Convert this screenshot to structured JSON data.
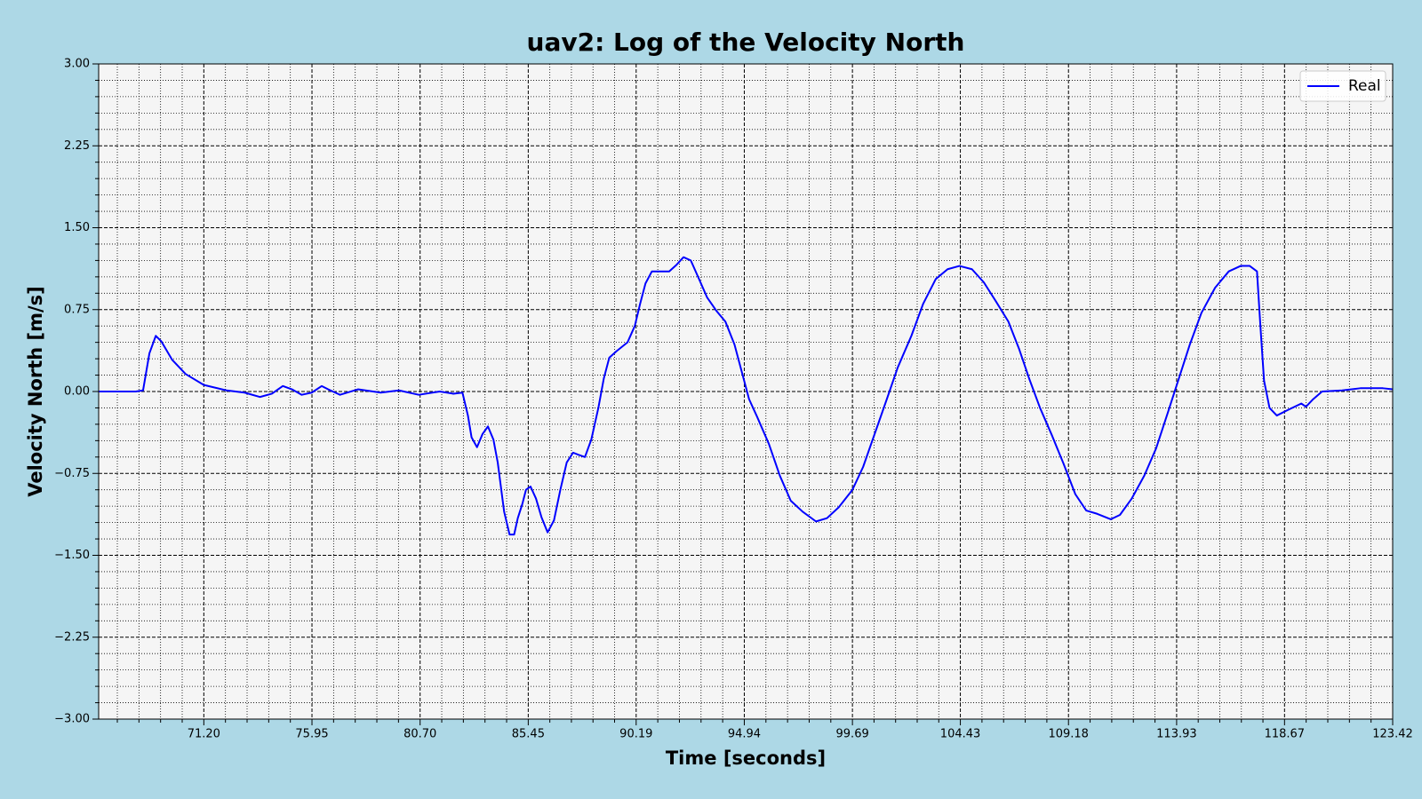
{
  "chart_data": {
    "type": "line",
    "title": "uav2: Log of the Velocity North",
    "x_label": "Time [seconds]",
    "y_label": "Velocity North [m/s]",
    "xlim": [
      66.58,
      123.42
    ],
    "ylim": [
      -3.0,
      3.0
    ],
    "xticks": [
      {
        "value": 71.2,
        "label": "71.20"
      },
      {
        "value": 75.95,
        "label": "75.95"
      },
      {
        "value": 80.7,
        "label": "80.70"
      },
      {
        "value": 85.45,
        "label": "85.45"
      },
      {
        "value": 90.19,
        "label": "90.19"
      },
      {
        "value": 94.94,
        "label": "94.94"
      },
      {
        "value": 99.69,
        "label": "99.69"
      },
      {
        "value": 104.43,
        "label": "104.43"
      },
      {
        "value": 109.18,
        "label": "109.18"
      },
      {
        "value": 113.93,
        "label": "113.93"
      },
      {
        "value": 118.67,
        "label": "118.67"
      },
      {
        "value": 123.42,
        "label": "123.42"
      }
    ],
    "yticks": [
      {
        "value": -3.0,
        "label": "−3.00"
      },
      {
        "value": -2.25,
        "label": "−2.25"
      },
      {
        "value": -1.5,
        "label": "−1.50"
      },
      {
        "value": -0.75,
        "label": "−0.75"
      },
      {
        "value": 0.0,
        "label": "0.00"
      },
      {
        "value": 0.75,
        "label": "0.75"
      },
      {
        "value": 1.5,
        "label": "1.50"
      },
      {
        "value": 2.25,
        "label": "2.25"
      },
      {
        "value": 3.0,
        "label": "3.00"
      }
    ],
    "grid": true,
    "legend": "upper right",
    "series": [
      {
        "name": "Real",
        "color": "#0000ff",
        "x": [
          66.58,
          68.21,
          68.53,
          68.81,
          69.09,
          69.33,
          69.81,
          70.4,
          71.2,
          72.2,
          72.99,
          73.67,
          74.19,
          74.67,
          75.07,
          75.5,
          75.94,
          76.38,
          76.66,
          77.18,
          77.97,
          78.97,
          79.77,
          80.64,
          81.56,
          82.16,
          82.56,
          82.8,
          82.96,
          83.2,
          83.44,
          83.68,
          83.92,
          84.11,
          84.39,
          84.63,
          84.83,
          84.99,
          85.19,
          85.35,
          85.55,
          85.79,
          86.03,
          86.3,
          86.58,
          86.86,
          87.14,
          87.42,
          87.66,
          87.94,
          88.22,
          88.53,
          88.77,
          89.01,
          89.33,
          89.81,
          90.13,
          90.36,
          90.6,
          90.88,
          91.24,
          91.64,
          91.96,
          92.27,
          92.59,
          92.91,
          93.31,
          93.71,
          94.11,
          94.51,
          94.83,
          95.15,
          95.5,
          96.02,
          96.5,
          96.98,
          97.5,
          98.09,
          98.57,
          99.09,
          99.69,
          100.16,
          100.68,
          101.2,
          101.68,
          102.28,
          102.79,
          103.35,
          103.87,
          104.39,
          104.94,
          105.46,
          105.98,
          106.54,
          107.01,
          107.45,
          107.93,
          108.45,
          108.96,
          109.48,
          109.96,
          110.44,
          111.04,
          111.44,
          111.96,
          112.51,
          113.03,
          113.55,
          114.03,
          114.51,
          115.02,
          115.62,
          116.22,
          116.74,
          117.14,
          117.46,
          117.61,
          117.77,
          118.01,
          118.33,
          118.81,
          119.41,
          119.61,
          119.93,
          120.32,
          121.2,
          122.0,
          122.99,
          123.42
        ],
        "values": [
          0.0,
          0.0,
          0.01,
          0.35,
          0.51,
          0.46,
          0.29,
          0.16,
          0.06,
          0.01,
          -0.01,
          -0.05,
          -0.02,
          0.05,
          0.02,
          -0.03,
          -0.01,
          0.05,
          0.02,
          -0.03,
          0.02,
          -0.01,
          0.01,
          -0.03,
          0.0,
          -0.02,
          -0.01,
          -0.22,
          -0.42,
          -0.51,
          -0.39,
          -0.32,
          -0.44,
          -0.65,
          -1.1,
          -1.31,
          -1.31,
          -1.16,
          -1.03,
          -0.9,
          -0.87,
          -0.98,
          -1.15,
          -1.29,
          -1.18,
          -0.9,
          -0.65,
          -0.56,
          -0.58,
          -0.6,
          -0.44,
          -0.15,
          0.12,
          0.31,
          0.37,
          0.45,
          0.6,
          0.8,
          0.99,
          1.1,
          1.1,
          1.1,
          1.16,
          1.23,
          1.2,
          1.05,
          0.86,
          0.74,
          0.64,
          0.43,
          0.18,
          -0.07,
          -0.23,
          -0.48,
          -0.77,
          -1.0,
          -1.1,
          -1.19,
          -1.16,
          -1.06,
          -0.9,
          -0.69,
          -0.38,
          -0.07,
          0.22,
          0.51,
          0.8,
          1.03,
          1.12,
          1.15,
          1.12,
          1.0,
          0.83,
          0.64,
          0.39,
          0.12,
          -0.15,
          -0.4,
          -0.66,
          -0.94,
          -1.09,
          -1.12,
          -1.17,
          -1.13,
          -0.98,
          -0.77,
          -0.52,
          -0.19,
          0.12,
          0.43,
          0.72,
          0.95,
          1.1,
          1.15,
          1.15,
          1.1,
          0.6,
          0.1,
          -0.15,
          -0.22,
          -0.17,
          -0.11,
          -0.14,
          -0.07,
          0.0,
          0.01,
          0.03,
          0.03,
          0.02
        ]
      }
    ]
  }
}
